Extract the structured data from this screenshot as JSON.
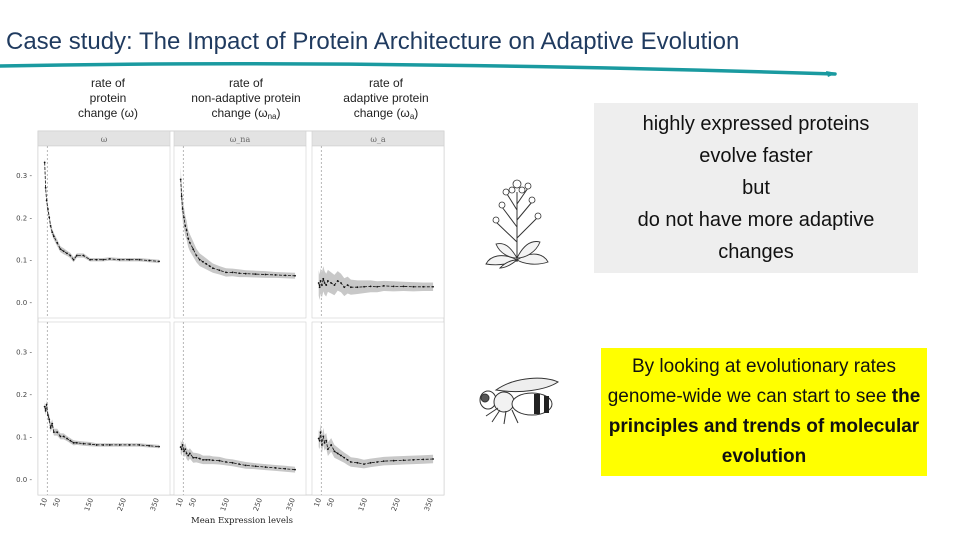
{
  "slide": {
    "title": "Case study: The Impact of Protein Architecture on Adaptive Evolution",
    "accent_color": "#1a9aa0"
  },
  "columns": [
    {
      "lines": [
        "rate of",
        "protein",
        "change (ω)"
      ]
    },
    {
      "lines": [
        "rate of",
        "non-adaptive protein"
      ],
      "last_prefix": "change (ω",
      "last_sub": "na",
      "last_suffix": ")"
    },
    {
      "lines": [
        "rate of",
        "adaptive protein"
      ],
      "last_prefix": "change (ω",
      "last_sub": "a",
      "last_suffix": ")"
    }
  ],
  "chart_data": {
    "type": "line",
    "strip_labels": [
      "ω",
      "ω_na",
      "ω_a"
    ],
    "y_ticks": [
      "0.0",
      "0.1",
      "0.2",
      "0.3"
    ],
    "x_ticks": [
      "10",
      "50",
      "150",
      "250",
      "350"
    ],
    "xlabel": "Mean Expression levels",
    "ylim": [
      0,
      0.35
    ],
    "xlim": [
      0,
      365
    ],
    "x_ref_line": 10,
    "band_color": "#c8c8c8",
    "line_color": "#111111",
    "rows": [
      {
        "organism": "plant",
        "panels": [
          {
            "x": [
              2,
              5,
              8,
              12,
              16,
              20,
              25,
              30,
              40,
              50,
              60,
              70,
              80,
              90,
              100,
              120,
              140,
              160,
              180,
              200,
              230,
              260,
              290,
              320,
              350
            ],
            "y": [
              0.33,
              0.27,
              0.24,
              0.22,
              0.2,
              0.18,
              0.165,
              0.155,
              0.14,
              0.125,
              0.12,
              0.115,
              0.11,
              0.1,
              0.11,
              0.11,
              0.1,
              0.1,
              0.1,
              0.102,
              0.1,
              0.1,
              0.1,
              0.098,
              0.096
            ],
            "err": [
              0.01,
              0.01,
              0.01,
              0.01,
              0.01,
              0.008,
              0.008,
              0.008,
              0.008,
              0.007,
              0.007,
              0.006,
              0.006,
              0.006,
              0.005,
              0.005,
              0.004,
              0.004,
              0.004,
              0.004,
              0.004,
              0.004,
              0.004,
              0.004,
              0.004
            ]
          },
          {
            "x": [
              2,
              5,
              8,
              12,
              16,
              20,
              25,
              30,
              40,
              50,
              60,
              70,
              80,
              90,
              100,
              120,
              140,
              160,
              180,
              200,
              230,
              260,
              290,
              320,
              350
            ],
            "y": [
              0.29,
              0.25,
              0.22,
              0.2,
              0.18,
              0.17,
              0.15,
              0.14,
              0.125,
              0.11,
              0.1,
              0.095,
              0.09,
              0.085,
              0.08,
              0.075,
              0.07,
              0.07,
              0.068,
              0.067,
              0.066,
              0.065,
              0.064,
              0.063,
              0.062
            ],
            "err": [
              0.03,
              0.028,
              0.026,
              0.025,
              0.024,
              0.022,
              0.02,
              0.02,
              0.018,
              0.016,
              0.015,
              0.014,
              0.013,
              0.012,
              0.011,
              0.01,
              0.01,
              0.009,
              0.009,
              0.008,
              0.008,
              0.008,
              0.007,
              0.007,
              0.007
            ]
          },
          {
            "x": [
              2,
              5,
              8,
              12,
              16,
              20,
              25,
              30,
              40,
              50,
              60,
              70,
              80,
              90,
              100,
              120,
              140,
              160,
              180,
              200,
              230,
              260,
              290,
              320,
              350
            ],
            "y": [
              0.045,
              0.035,
              0.05,
              0.04,
              0.055,
              0.045,
              0.04,
              0.05,
              0.045,
              0.04,
              0.05,
              0.045,
              0.035,
              0.04,
              0.035,
              0.035,
              0.036,
              0.037,
              0.036,
              0.038,
              0.037,
              0.037,
              0.036,
              0.036,
              0.036
            ],
            "err": [
              0.03,
              0.03,
              0.03,
              0.03,
              0.03,
              0.028,
              0.027,
              0.026,
              0.025,
              0.024,
              0.023,
              0.022,
              0.021,
              0.02,
              0.018,
              0.016,
              0.015,
              0.014,
              0.013,
              0.012,
              0.012,
              0.011,
              0.011,
              0.01,
              0.01
            ]
          }
        ]
      },
      {
        "organism": "fly",
        "panels": [
          {
            "x": [
              2,
              5,
              8,
              12,
              16,
              20,
              25,
              30,
              40,
              50,
              60,
              70,
              80,
              90,
              100,
              120,
              140,
              160,
              180,
              200,
              230,
              260,
              290,
              320,
              350
            ],
            "y": [
              0.17,
              0.16,
              0.175,
              0.15,
              0.14,
              0.12,
              0.13,
              0.11,
              0.11,
              0.1,
              0.1,
              0.095,
              0.09,
              0.085,
              0.085,
              0.083,
              0.082,
              0.08,
              0.08,
              0.08,
              0.08,
              0.08,
              0.08,
              0.078,
              0.076
            ],
            "err": [
              0.01,
              0.01,
              0.01,
              0.01,
              0.01,
              0.01,
              0.01,
              0.008,
              0.008,
              0.007,
              0.007,
              0.006,
              0.006,
              0.006,
              0.005,
              0.005,
              0.005,
              0.004,
              0.004,
              0.004,
              0.004,
              0.004,
              0.004,
              0.004,
              0.004
            ]
          },
          {
            "x": [
              2,
              5,
              8,
              12,
              16,
              20,
              25,
              30,
              40,
              50,
              60,
              70,
              80,
              90,
              100,
              120,
              140,
              160,
              180,
              200,
              230,
              260,
              290,
              320,
              350
            ],
            "y": [
              0.075,
              0.07,
              0.08,
              0.065,
              0.07,
              0.06,
              0.055,
              0.06,
              0.05,
              0.05,
              0.048,
              0.045,
              0.045,
              0.045,
              0.044,
              0.043,
              0.04,
              0.038,
              0.035,
              0.032,
              0.03,
              0.028,
              0.026,
              0.024,
              0.022
            ],
            "err": [
              0.015,
              0.015,
              0.015,
              0.014,
              0.014,
              0.013,
              0.013,
              0.012,
              0.012,
              0.011,
              0.011,
              0.01,
              0.01,
              0.01,
              0.009,
              0.009,
              0.008,
              0.008,
              0.008,
              0.008,
              0.007,
              0.007,
              0.007,
              0.007,
              0.007
            ]
          },
          {
            "x": [
              2,
              5,
              8,
              12,
              16,
              20,
              25,
              30,
              40,
              50,
              60,
              70,
              80,
              90,
              100,
              120,
              140,
              160,
              180,
              200,
              230,
              260,
              290,
              320,
              350
            ],
            "y": [
              0.095,
              0.09,
              0.11,
              0.08,
              0.1,
              0.085,
              0.09,
              0.07,
              0.08,
              0.065,
              0.06,
              0.055,
              0.05,
              0.045,
              0.04,
              0.038,
              0.035,
              0.038,
              0.04,
              0.042,
              0.043,
              0.044,
              0.045,
              0.046,
              0.047
            ],
            "err": [
              0.02,
              0.02,
              0.02,
              0.02,
              0.02,
              0.018,
              0.018,
              0.016,
              0.016,
              0.015,
              0.014,
              0.013,
              0.012,
              0.012,
              0.011,
              0.011,
              0.01,
              0.01,
              0.01,
              0.01,
              0.01,
              0.01,
              0.01,
              0.01,
              0.01
            ]
          }
        ]
      }
    ]
  },
  "notes": {
    "grey_box": {
      "lines": [
        "highly expressed proteins",
        "evolve faster",
        "but",
        "do not have more adaptive",
        "changes"
      ]
    },
    "yellow_box": {
      "part1": "By looking at evolutionary rates genome-wide we can start to see ",
      "bold": "the principles and trends of molecular evolution"
    }
  },
  "icons": {
    "plant": "plant-sketch-icon",
    "fly": "fruit-fly-sketch-icon"
  }
}
